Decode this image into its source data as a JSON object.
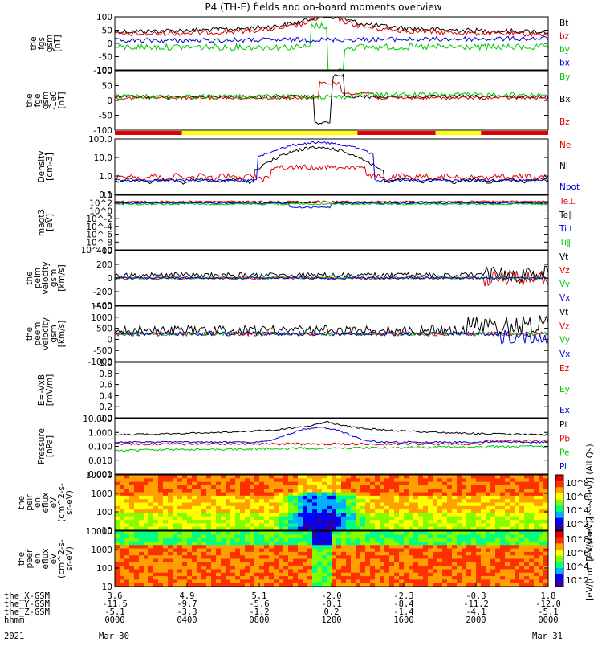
{
  "title": "P4 (TH-E) fields and on-board moments overview",
  "colors": {
    "black": "#000000",
    "red": "#e00000",
    "green": "#00c800",
    "blue": "#0000d8",
    "yellow": "#ffff00"
  },
  "chart_data": [
    {
      "type": "line",
      "panel": "fgs",
      "ylabel": [
        "the",
        "fgs",
        "gsm",
        "[nT]"
      ],
      "ylim": [
        -100,
        100
      ],
      "yticks": [
        "100",
        "50",
        "0",
        "-50",
        "-100"
      ],
      "legend": [
        {
          "name": "Bt",
          "color": "black"
        },
        {
          "name": "bz",
          "color": "red"
        },
        {
          "name": "by",
          "color": "green"
        },
        {
          "name": "bx",
          "color": "blue"
        }
      ]
    },
    {
      "type": "line",
      "panel": "fge",
      "ylabel": [
        "the",
        "fge",
        "gsm",
        "-1e0",
        "[nT]"
      ],
      "ylim": [
        -130,
        110
      ],
      "yticks": [
        "100",
        "50",
        "0",
        "-50",
        "-100"
      ],
      "legend": [
        {
          "name": "By",
          "color": "green"
        },
        {
          "name": "Bx",
          "color": "black"
        },
        {
          "name": "Bz",
          "color": "red"
        }
      ]
    },
    {
      "type": "line",
      "panel": "density",
      "ylabel": [
        "Density",
        "[cm-3]"
      ],
      "log": true,
      "yticks": [
        "100.0",
        "10.0",
        "1.0",
        "0.1"
      ],
      "legend": [
        {
          "name": "Ne",
          "color": "red"
        },
        {
          "name": "Ni",
          "color": "black"
        },
        {
          "name": "Npot",
          "color": "blue"
        }
      ]
    },
    {
      "type": "line",
      "panel": "temperature",
      "ylabel": [
        "magt3",
        "[eV]"
      ],
      "log": true,
      "yticks": [
        "10",
        "10^2",
        "10^0",
        "10^-2",
        "10^-4",
        "10^-6",
        "10^-8",
        "10^-10"
      ],
      "legend": [
        {
          "name": "Te⊥",
          "color": "red"
        },
        {
          "name": "Te∥",
          "color": "black"
        },
        {
          "name": "Ti⊥",
          "color": "blue"
        },
        {
          "name": "Ti∥",
          "color": "green"
        }
      ]
    },
    {
      "type": "line",
      "panel": "peim-velocity",
      "ylabel": [
        "the",
        "peim",
        "velocity",
        "gsm",
        "[km/s]"
      ],
      "ylim": [
        -400,
        400
      ],
      "yticks": [
        "400",
        "200",
        "0",
        "-200",
        "-400"
      ],
      "legend": [
        {
          "name": "Vt",
          "color": "black"
        },
        {
          "name": "Vz",
          "color": "red"
        },
        {
          "name": "Vy",
          "color": "green"
        },
        {
          "name": "Vx",
          "color": "blue"
        }
      ]
    },
    {
      "type": "line",
      "panel": "peem-velocity",
      "ylabel": [
        "the",
        "peem",
        "velocity",
        "gsm",
        "[km/s]"
      ],
      "ylim": [
        -1500,
        1500
      ],
      "yticks": [
        "1500",
        "1000",
        "500",
        "0",
        "-500",
        "-1000"
      ],
      "legend": [
        {
          "name": "Vt",
          "color": "black"
        },
        {
          "name": "Vz",
          "color": "red"
        },
        {
          "name": "Vy",
          "color": "green"
        },
        {
          "name": "Vx",
          "color": "blue"
        }
      ]
    },
    {
      "type": "line",
      "panel": "efield",
      "ylabel": [
        "E=-VxB",
        "[mV/m]"
      ],
      "ylim": [
        0,
        1
      ],
      "yticks": [
        "1.0",
        "0.8",
        "0.6",
        "0.4",
        "0.2",
        "0.0"
      ],
      "legend": [
        {
          "name": "Ez",
          "color": "red"
        },
        {
          "name": "Ey",
          "color": "green"
        },
        {
          "name": "Ex",
          "color": "blue"
        }
      ]
    },
    {
      "type": "line",
      "panel": "pressure",
      "ylabel": [
        "Pressure",
        "[nPa]"
      ],
      "log": true,
      "yticks": [
        "10.000",
        "1.000",
        "0.100",
        "0.010",
        "0.001"
      ],
      "legend": [
        {
          "name": "Pt",
          "color": "black"
        },
        {
          "name": "Pb",
          "color": "red"
        },
        {
          "name": "Pe",
          "color": "green"
        },
        {
          "name": "Pi",
          "color": "blue"
        }
      ]
    },
    {
      "type": "heatmap",
      "panel": "peir-spectrogram",
      "ylabel": [
        "the",
        "peir",
        "en",
        "eflux",
        "eV",
        "(cm^2-s-",
        "sr-eV)"
      ],
      "yticks": [
        "10000",
        "1000",
        "100",
        "10"
      ],
      "colorbar": {
        "ticks": [
          "10^8",
          "10^6",
          "10^4",
          "10^2"
        ],
        "label": "[eV/(cm^2-s-sr-eV)] (All Qs)"
      }
    },
    {
      "type": "heatmap",
      "panel": "peer-spectrogram",
      "ylabel": [
        "the",
        "peer",
        "en",
        "eflux",
        "eV",
        "(cm^2-s-",
        "sr-eV)"
      ],
      "yticks": [
        "10000",
        "1000",
        "100",
        "10"
      ],
      "colorbar": {
        "ticks": [
          "10^8",
          "10^6",
          "10^4",
          "10^2"
        ],
        "label": "[eV/(cm^2-s-sr-eV)]"
      }
    }
  ],
  "mode_bar": [
    {
      "x0": 0.0,
      "x1": 0.155,
      "color": "red"
    },
    {
      "x0": 0.155,
      "x1": 0.56,
      "color": "yellow"
    },
    {
      "x0": 0.56,
      "x1": 0.885,
      "color": "red"
    },
    {
      "x0": 0.885,
      "x1": 0.74,
      "color": "yellow"
    },
    {
      "x0": 0.74,
      "x1": 0.845,
      "color": "yellow"
    },
    {
      "x0": 0.845,
      "x1": 1.0,
      "color": "red"
    }
  ],
  "xaxis": {
    "rows": [
      {
        "label": "the_X-GSM",
        "values": [
          "3.6",
          "4.9",
          "5.1",
          "-2.0",
          "-2.3",
          "-0.3",
          "1.8"
        ]
      },
      {
        "label": "the_Y-GSM",
        "values": [
          "-11.5",
          "-9.7",
          "-5.6",
          "-0.1",
          "-8.4",
          "-11.2",
          "-12.0"
        ]
      },
      {
        "label": "the_Z-GSM",
        "values": [
          "-5.1",
          "-3.3",
          "-1.2",
          "0.2",
          "-1.4",
          "-4.1",
          "-5.1"
        ]
      },
      {
        "label": "hhmm",
        "values": [
          "0000",
          "0400",
          "0800",
          "1200",
          "1600",
          "2000",
          "0000"
        ]
      }
    ],
    "year": "2021",
    "start_date": "Mar 30",
    "end_date": "Mar 31"
  }
}
